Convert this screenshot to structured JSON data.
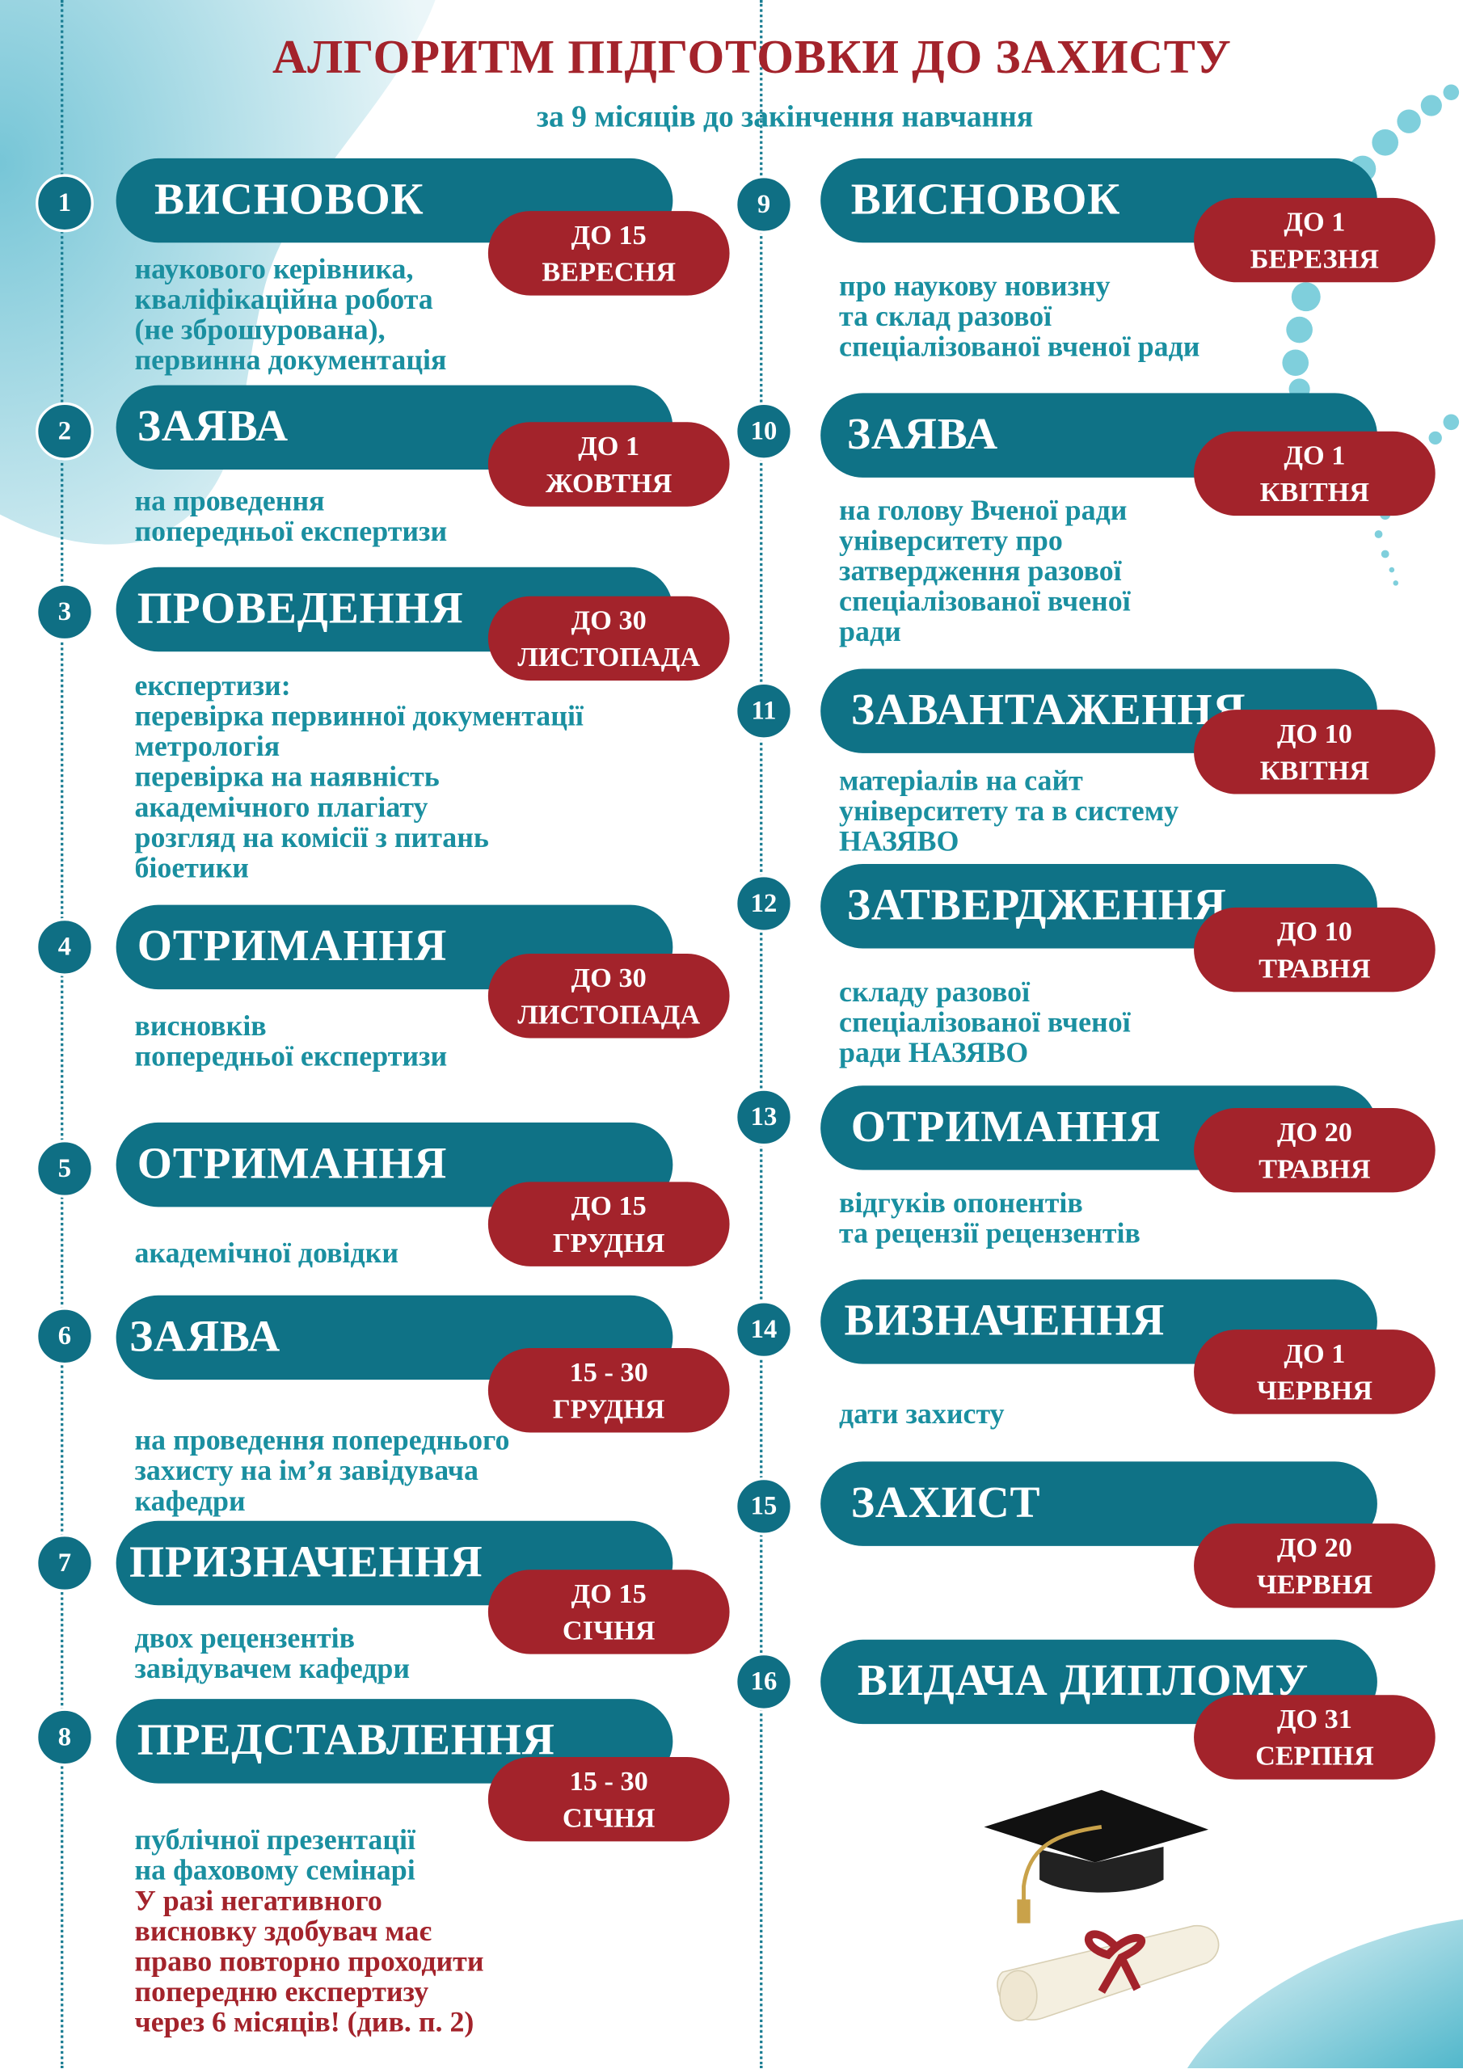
{
  "title": "АЛГОРИТМ ПІДГОТОВКИ ДО ЗАХИСТУ",
  "subtitle": "за 9 місяців до закінчення навчання",
  "steps": [
    {
      "number": 1,
      "heading": "ВИСНОВОК",
      "deadline": [
        "ДО 15",
        "ВЕРЕСНЯ"
      ],
      "description": [
        "наукового керівника,",
        "кваліфікаційна робота",
        "(не зброшурована),",
        "первинна документація"
      ]
    },
    {
      "number": 2,
      "heading": "ЗАЯВА",
      "deadline": [
        "ДО 1",
        "ЖОВТНЯ"
      ],
      "description": [
        "на проведення",
        "попередньої експертизи"
      ]
    },
    {
      "number": 3,
      "heading": "ПРОВЕДЕННЯ",
      "deadline": [
        "ДО 30",
        "ЛИСТОПАДА"
      ],
      "description": [
        "експертизи:",
        "перевірка первинної документації",
        "метрологія",
        "перевірка на наявність",
        "академічного плагіату",
        "розгляд на комісії з питань",
        "біоетики"
      ]
    },
    {
      "number": 4,
      "heading": "ОТРИМАННЯ",
      "deadline": [
        "ДО 30",
        "ЛИСТОПАДА"
      ],
      "description": [
        "висновків",
        "попередньої експертизи"
      ]
    },
    {
      "number": 5,
      "heading": "ОТРИМАННЯ",
      "deadline": [
        "ДО 15",
        "ГРУДНЯ"
      ],
      "description": [
        "академічної довідки"
      ]
    },
    {
      "number": 6,
      "heading": "ЗАЯВА",
      "deadline": [
        "15 - 30",
        "ГРУДНЯ"
      ],
      "description": [
        "на проведення попереднього",
        "захисту на ім’я завідувача",
        "кафедри"
      ]
    },
    {
      "number": 7,
      "heading": "ПРИЗНАЧЕННЯ",
      "deadline": [
        "ДО 15",
        "СІЧНЯ"
      ],
      "description": [
        "двох рецензентів",
        "завідувачем кафедри"
      ]
    },
    {
      "number": 8,
      "heading": "ПРЕДСТАВЛЕННЯ",
      "deadline": [
        "15 - 30",
        "СІЧНЯ"
      ],
      "description": [
        "публічної презентації",
        "на фаховому семінарі"
      ],
      "note": [
        "У разі негативного",
        "висновку здобувач має",
        "право повторно проходити",
        "попередню експертизу",
        "через 6 місяців! (див. п. 2)"
      ]
    },
    {
      "number": 9,
      "heading": "ВИСНОВОК",
      "deadline": [
        "ДО 1",
        "БЕРЕЗНЯ"
      ],
      "description": [
        "про наукову новизну",
        "та склад разової",
        "спеціалізованої вченої ради"
      ]
    },
    {
      "number": 10,
      "heading": "ЗАЯВА",
      "deadline": [
        "ДО 1",
        "КВІТНЯ"
      ],
      "description": [
        "на голову Вченої ради",
        "університету про",
        "затвердження разової",
        "спеціалізованої вченої",
        "ради"
      ]
    },
    {
      "number": 11,
      "heading": "ЗАВАНТАЖЕННЯ",
      "deadline": [
        "ДО 10",
        "КВІТНЯ"
      ],
      "description": [
        "матеріалів на сайт",
        "університету та в систему",
        "НАЗЯВО"
      ]
    },
    {
      "number": 12,
      "heading": "ЗАТВЕРДЖЕННЯ",
      "deadline": [
        "ДО 10",
        "ТРАВНЯ"
      ],
      "description": [
        "складу разової",
        "спеціалізованої вченої",
        "ради НАЗЯВО"
      ]
    },
    {
      "number": 13,
      "heading": "ОТРИМАННЯ",
      "deadline": [
        "ДО 20",
        "ТРАВНЯ"
      ],
      "description": [
        "відгуків опонентів",
        "та рецензії рецензентів"
      ]
    },
    {
      "number": 14,
      "heading": "ВИЗНАЧЕННЯ",
      "deadline": [
        "ДО 1",
        "ЧЕРВНЯ"
      ],
      "description": [
        "дати захисту"
      ]
    },
    {
      "number": 15,
      "heading": "ЗАХИСТ",
      "deadline": [
        "ДО 20",
        "ЧЕРВНЯ"
      ]
    },
    {
      "number": 16,
      "heading": "ВИДАЧА ДИПЛОМУ",
      "deadline": [
        "ДО 31",
        "СЕРПНЯ"
      ]
    }
  ]
}
